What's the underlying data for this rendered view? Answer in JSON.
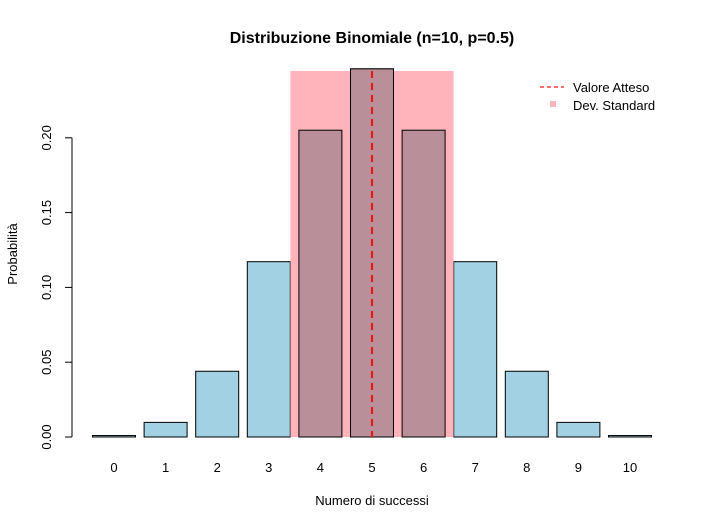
{
  "chart_data": {
    "type": "bar",
    "title": "Distribuzione Binomiale (n=10, p=0.5)",
    "xlabel": "Numero di successi",
    "ylabel": "Probabilità",
    "categories": [
      "0",
      "1",
      "2",
      "3",
      "4",
      "5",
      "6",
      "7",
      "8",
      "9",
      "10"
    ],
    "values": [
      0.000977,
      0.009766,
      0.043945,
      0.117188,
      0.205078,
      0.246094,
      0.205078,
      0.117188,
      0.043945,
      0.009766,
      0.000977
    ],
    "ylim": [
      0,
      0.25
    ],
    "yticks": [
      "0.00",
      "0.05",
      "0.10",
      "0.15",
      "0.20"
    ],
    "expected_value": 5,
    "std_dev_band": [
      3.419,
      6.581
    ],
    "bar_color": "#a1d1e2",
    "band_color": "#ffb3ba",
    "overlap_color": "#b99099",
    "mean_line_color": "#e41a1c",
    "legend": {
      "position": "top-right",
      "entries": [
        {
          "label": "Valore Atteso",
          "style": "dashed-line",
          "color": "#ff3b3b"
        },
        {
          "label": "Dev. Standard",
          "style": "square",
          "color": "#ffb3ba"
        }
      ]
    },
    "grid": false
  }
}
